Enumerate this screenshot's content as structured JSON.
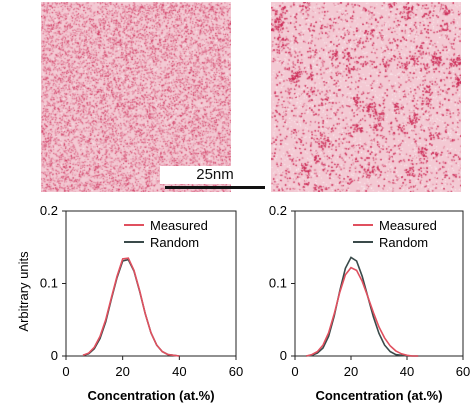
{
  "scale_bar": {
    "label": "25nm"
  },
  "colors": {
    "measured": "#e0505f",
    "random": "#3a4a4a",
    "micro_base": "#f3c9d3",
    "micro_speck": "#d3345a"
  },
  "chart_data": [
    {
      "type": "line",
      "xlabel": "Concentration (at.%)",
      "ylabel": "Arbitrary units",
      "xlim": [
        0,
        60
      ],
      "ylim": [
        0,
        0.2
      ],
      "xticks": [
        "0",
        "20",
        "40",
        "60"
      ],
      "yticks": [
        "0",
        "0.1",
        "0.2"
      ],
      "legend": "top-right",
      "series": [
        {
          "name": "Measured",
          "x": [
            6,
            8,
            10,
            12,
            14,
            16,
            18,
            20,
            22,
            24,
            26,
            28,
            30,
            32,
            34,
            36,
            38,
            40
          ],
          "y": [
            0.001,
            0.004,
            0.012,
            0.027,
            0.05,
            0.08,
            0.11,
            0.134,
            0.135,
            0.118,
            0.09,
            0.058,
            0.032,
            0.015,
            0.006,
            0.002,
            0.001,
            0.0
          ]
        },
        {
          "name": "Random",
          "x": [
            6,
            8,
            10,
            12,
            14,
            16,
            18,
            20,
            22,
            24,
            26,
            28,
            30,
            32,
            34,
            36,
            38,
            40
          ],
          "y": [
            0.001,
            0.003,
            0.01,
            0.024,
            0.047,
            0.078,
            0.108,
            0.131,
            0.133,
            0.117,
            0.089,
            0.058,
            0.032,
            0.015,
            0.006,
            0.002,
            0.001,
            0.0
          ]
        }
      ]
    },
    {
      "type": "line",
      "xlabel": "Concentration (at.%)",
      "ylabel": "",
      "xlim": [
        0,
        60
      ],
      "ylim": [
        0,
        0.2
      ],
      "xticks": [
        "0",
        "20",
        "40",
        "60"
      ],
      "yticks": [
        "0",
        "0.1",
        "0.2"
      ],
      "legend": "top-right",
      "series": [
        {
          "name": "Measured",
          "x": [
            4,
            6,
            8,
            10,
            12,
            14,
            16,
            18,
            20,
            22,
            24,
            26,
            28,
            30,
            32,
            34,
            36,
            38,
            40,
            42,
            44
          ],
          "y": [
            0.0,
            0.002,
            0.006,
            0.015,
            0.032,
            0.058,
            0.088,
            0.112,
            0.122,
            0.118,
            0.103,
            0.082,
            0.06,
            0.04,
            0.025,
            0.014,
            0.007,
            0.003,
            0.001,
            0.0,
            0.0
          ]
        },
        {
          "name": "Random",
          "x": [
            4,
            6,
            8,
            10,
            12,
            14,
            16,
            18,
            20,
            22,
            24,
            26,
            28,
            30,
            32,
            34,
            36,
            38,
            40,
            42,
            44
          ],
          "y": [
            0.0,
            0.001,
            0.004,
            0.011,
            0.027,
            0.055,
            0.09,
            0.121,
            0.136,
            0.131,
            0.11,
            0.082,
            0.054,
            0.031,
            0.015,
            0.006,
            0.002,
            0.001,
            0.0,
            0.0,
            0.0
          ]
        }
      ]
    }
  ]
}
